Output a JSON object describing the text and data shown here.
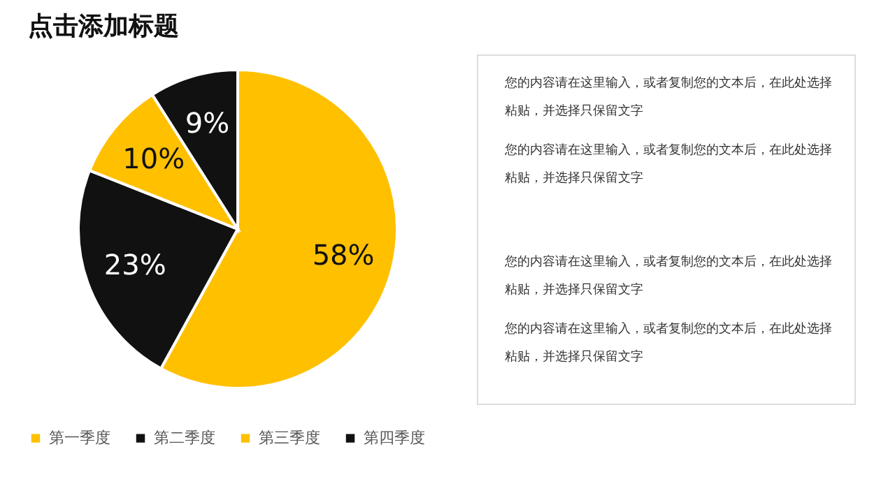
{
  "chart_data": {
    "type": "pie",
    "title": "点击添加标题",
    "categories": [
      "第一季度",
      "第二季度",
      "第三季度",
      "第四季度"
    ],
    "values": [
      58,
      23,
      10,
      9
    ],
    "colors": [
      "#ffc000",
      "#111111",
      "#ffc000",
      "#111111"
    ],
    "value_labels": [
      "58%",
      "23%",
      "10%",
      "9%"
    ],
    "legend": "bottom",
    "annotations": [
      "您的内容请在这里输入，或者复制您的文本后，在此处选择粘贴，并选择只保留文字",
      "您的内容请在这里输入，或者复制您的文本后，在此处选择粘贴，并选择只保留文字",
      "您的内容请在这里输入，或者复制您的文本后，在此处选择粘贴，并选择只保留文字",
      "您的内容请在这里输入，或者复制您的文本后，在此处选择粘贴，并选择只保留文字"
    ]
  }
}
